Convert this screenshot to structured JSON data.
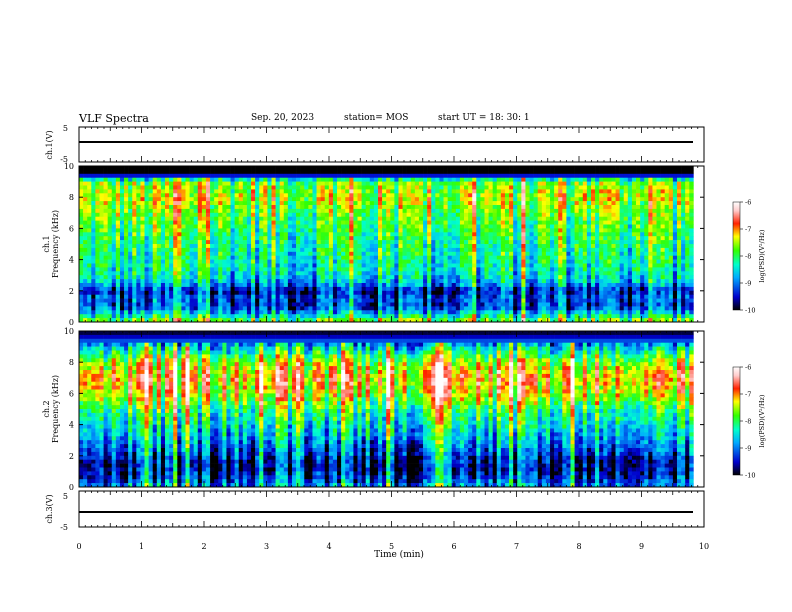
{
  "header": {
    "title": "VLF Spectra",
    "date": "Sep. 20, 2023",
    "station": "station= MOS",
    "start_ut": "start  UT =   18: 30: 1"
  },
  "colorbar": {
    "label": "log(PSD)(V²/Hz)",
    "ticks": [
      "-6",
      "-7",
      "-8",
      "-9",
      "-10"
    ],
    "colors": [
      "#000000",
      "#0000cc",
      "#00aaff",
      "#00ffcc",
      "#33ff00",
      "#ffff00",
      "#ff2200",
      "#ffcccc",
      "#ffffff"
    ]
  },
  "chart_data": [
    {
      "type": "line",
      "panel": "ch1-waveform",
      "ylabel": "ch.1(V)",
      "yticks": [
        "5",
        "-5"
      ],
      "ylim": [
        -5,
        5
      ],
      "xlim": [
        0,
        10
      ],
      "series": [
        {
          "values": [
            0,
            0
          ]
        }
      ],
      "x": [
        0,
        9.83
      ]
    },
    {
      "type": "heatmap",
      "panel": "ch1-spectrogram",
      "ylabel": "ch.1\nFrequency (kHz)",
      "ylim": [
        0,
        10
      ],
      "yticks": [
        "0",
        "2",
        "4",
        "6",
        "8",
        "10"
      ],
      "xlim": [
        0,
        10
      ],
      "data_end_min": 9.83,
      "band_profile_freq_khz": [
        0,
        0.5,
        1,
        1.5,
        2,
        2.5,
        3,
        4,
        5,
        6,
        7,
        8,
        9,
        9.5,
        10
      ],
      "band_profile_logpsd": [
        -7.6,
        -8.6,
        -9.4,
        -9.2,
        -9.6,
        -8.8,
        -8.5,
        -8.3,
        -8.2,
        -8.0,
        -7.8,
        -7.5,
        -7.8,
        -10,
        -10
      ]
    },
    {
      "type": "heatmap",
      "panel": "ch2-spectrogram",
      "ylabel": "ch.2\nFrequency (kHz)",
      "ylim": [
        0,
        10
      ],
      "yticks": [
        "0",
        "2",
        "4",
        "6",
        "8",
        "10"
      ],
      "xlim": [
        0,
        10
      ],
      "data_end_min": 9.83,
      "band_profile_freq_khz": [
        0,
        0.5,
        1,
        1.5,
        2,
        3,
        4,
        5,
        6,
        7,
        8,
        9,
        9.5,
        10
      ],
      "band_profile_logpsd": [
        -8.8,
        -9.3,
        -9.5,
        -9.6,
        -9.3,
        -8.8,
        -8.4,
        -8.0,
        -7.3,
        -7.0,
        -7.5,
        -8.6,
        -9.4,
        -10
      ]
    },
    {
      "type": "line",
      "panel": "ch3-waveform",
      "ylabel": "ch.3(V)",
      "yticks": [
        "5",
        "-5"
      ],
      "ylim": [
        -5,
        5
      ],
      "xlim": [
        0,
        10
      ],
      "series": [
        {
          "values": [
            -0.5,
            -0.5
          ]
        }
      ],
      "x": [
        0,
        9.83
      ]
    }
  ],
  "xaxis": {
    "label": "Time (min)",
    "ticks": [
      "0",
      "1",
      "2",
      "3",
      "4",
      "5",
      "6",
      "7",
      "8",
      "9",
      "10"
    ]
  }
}
